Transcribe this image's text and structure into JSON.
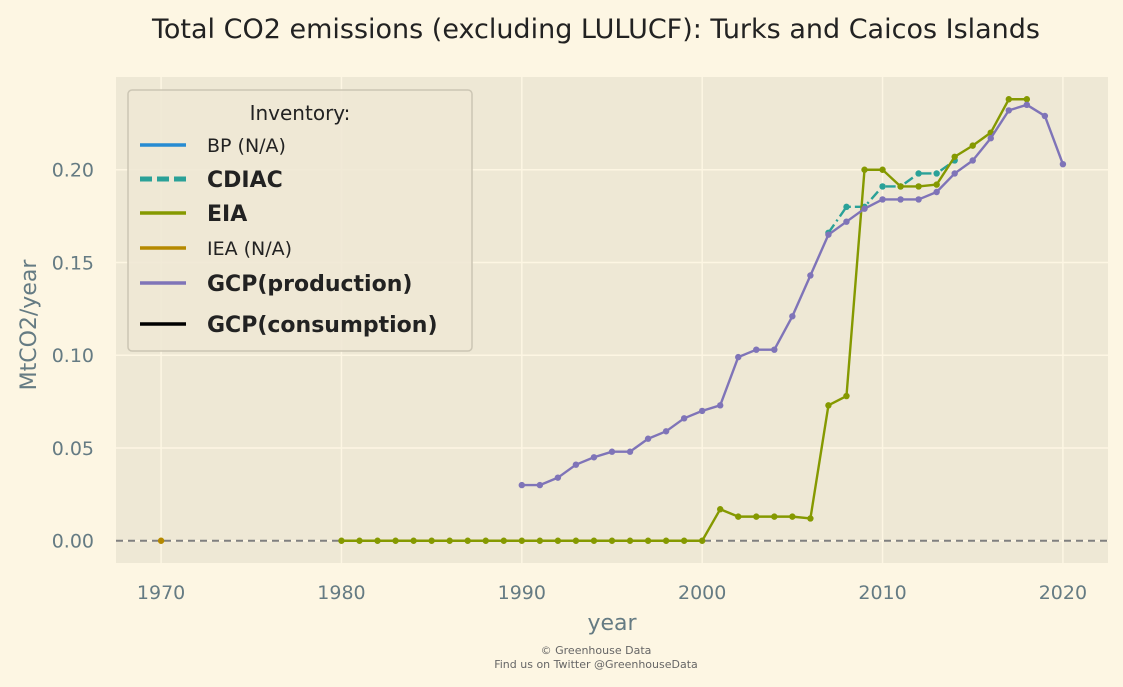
{
  "chart_data": {
    "type": "line",
    "title": "Total CO2 emissions (excluding LULUCF): Turks and Caicos Islands",
    "xlabel": "year",
    "ylabel": "MtCO2/year",
    "xlim": [
      1967.5,
      2022.5
    ],
    "ylim": [
      -0.012,
      0.25
    ],
    "x_ticks": [
      1970,
      1980,
      1990,
      2000,
      2010,
      2020
    ],
    "y_ticks": [
      0.0,
      0.05,
      0.1,
      0.15,
      0.2
    ],
    "y_tick_labels": [
      "0.00",
      "0.05",
      "0.10",
      "0.15",
      "0.20"
    ],
    "grid": true,
    "zero_line": true,
    "legend": {
      "title": "Inventory:",
      "position": "top-left",
      "entries": [
        {
          "label": "BP (N/A)",
          "color": "#268bd2",
          "style": "solid",
          "bold": false
        },
        {
          "label": "CDIAC",
          "color": "#2aa198",
          "style": "dashed",
          "bold": true
        },
        {
          "label": "EIA",
          "color": "#859900",
          "style": "solid",
          "bold": true
        },
        {
          "label": "IEA (N/A)",
          "color": "#b58900",
          "style": "solid",
          "bold": false
        },
        {
          "label": "GCP(production)",
          "color": "#7f74b8",
          "style": "solid",
          "bold": true
        },
        {
          "label": "GCP(consumption)",
          "color": "#000000",
          "style": "solid",
          "bold": true
        }
      ]
    },
    "series": [
      {
        "name": "CDIAC",
        "color": "#2aa198",
        "style": "dashdot",
        "x": [
          2007,
          2008,
          2009,
          2010,
          2011,
          2012,
          2013,
          2014
        ],
        "y": [
          0.166,
          0.18,
          0.18,
          0.191,
          0.191,
          0.198,
          0.198,
          0.205
        ]
      },
      {
        "name": "EIA",
        "color": "#859900",
        "style": "solid",
        "x": [
          1980,
          1981,
          1982,
          1983,
          1984,
          1985,
          1986,
          1987,
          1988,
          1989,
          1990,
          1991,
          1992,
          1993,
          1994,
          1995,
          1996,
          1997,
          1998,
          1999,
          2000,
          2001,
          2002,
          2003,
          2004,
          2005,
          2006,
          2007,
          2008,
          2009,
          2010,
          2011,
          2012,
          2013,
          2014,
          2015,
          2016,
          2017,
          2018
        ],
        "y": [
          0,
          0,
          0,
          0,
          0,
          0,
          0,
          0,
          0,
          0,
          0,
          0,
          0,
          0,
          0,
          0,
          0,
          0,
          0,
          0,
          0,
          0.017,
          0.013,
          0.013,
          0.013,
          0.013,
          0.012,
          0.073,
          0.078,
          0.2,
          0.2,
          0.191,
          0.191,
          0.192,
          0.207,
          0.213,
          0.22,
          0.238,
          0.238
        ]
      },
      {
        "name": "IEA (N/A)",
        "color": "#b58900",
        "style": "points",
        "x": [
          1970
        ],
        "y": [
          0
        ]
      },
      {
        "name": "GCP(production)",
        "color": "#7f74b8",
        "style": "solid",
        "x": [
          1990,
          1991,
          1992,
          1993,
          1994,
          1995,
          1996,
          1997,
          1998,
          1999,
          2000,
          2001,
          2002,
          2003,
          2004,
          2005,
          2006,
          2007,
          2008,
          2009,
          2010,
          2011,
          2012,
          2013,
          2014,
          2015,
          2016,
          2017,
          2018,
          2019,
          2020
        ],
        "y": [
          0.03,
          0.03,
          0.034,
          0.041,
          0.045,
          0.048,
          0.048,
          0.055,
          0.059,
          0.066,
          0.07,
          0.073,
          0.099,
          0.103,
          0.103,
          0.121,
          0.143,
          0.165,
          0.172,
          0.179,
          0.184,
          0.184,
          0.184,
          0.188,
          0.198,
          0.205,
          0.217,
          0.232,
          0.235,
          0.229,
          0.203
        ]
      }
    ]
  },
  "credit": {
    "line1": "© Greenhouse Data",
    "line2": "Find us on Twitter @GreenhouseData"
  }
}
